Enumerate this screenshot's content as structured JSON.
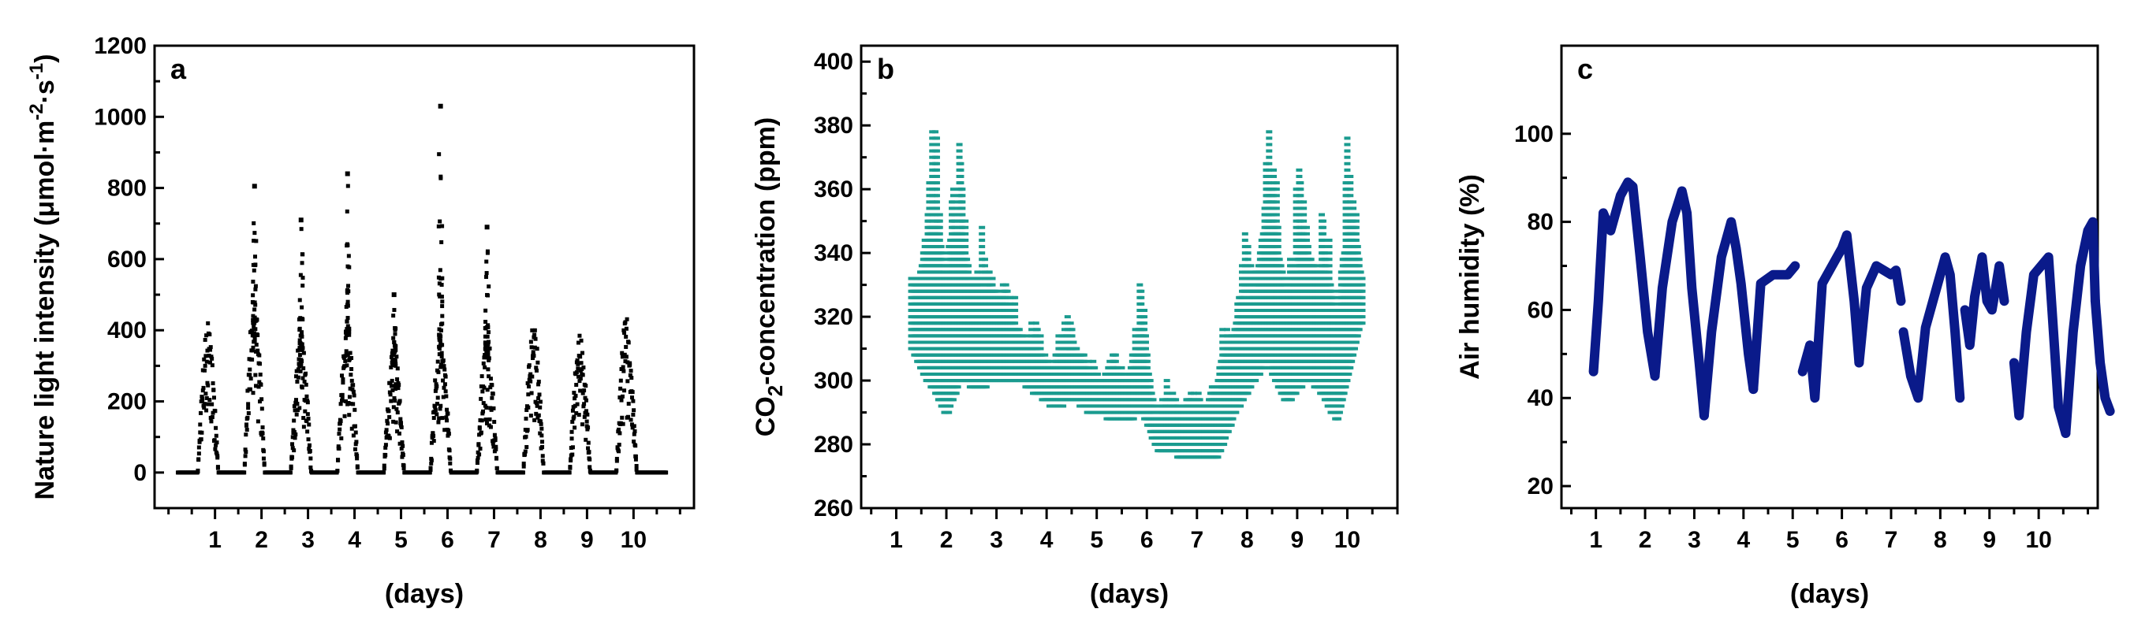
{
  "chart_data": [
    {
      "panel_label": "a",
      "type": "scatter",
      "ylabel_main": "Nature light intensity (μmol·m",
      "ylabel_sup1": "-2",
      "ylabel_mid": "·s",
      "ylabel_sup2": "-1",
      "ylabel_end": ")",
      "xlabel": "(days)",
      "xlim": [
        -0.3,
        11.3
      ],
      "ylim": [
        -100,
        1200
      ],
      "yticks": [
        0,
        200,
        400,
        600,
        800,
        1000,
        1200
      ],
      "xticks": [
        1,
        2,
        3,
        4,
        5,
        6,
        7,
        8,
        9,
        10
      ],
      "color": "#000000",
      "day_peaks": [
        {
          "day": 1,
          "center": 0.85,
          "peak": 360,
          "max_outlier": 360
        },
        {
          "day": 2,
          "center": 1.85,
          "peak": 420,
          "max_outlier": 805
        },
        {
          "day": 3,
          "center": 2.85,
          "peak": 340,
          "max_outlier": 710
        },
        {
          "day": 4,
          "center": 3.85,
          "peak": 370,
          "max_outlier": 840
        },
        {
          "day": 5,
          "center": 4.85,
          "peak": 300,
          "max_outlier": 500
        },
        {
          "day": 6,
          "center": 5.85,
          "peak": 350,
          "max_outlier": 1030
        },
        {
          "day": 7,
          "center": 6.85,
          "peak": 330,
          "max_outlier": 690
        },
        {
          "day": 8,
          "center": 7.85,
          "peak": 360,
          "max_outlier": 360
        },
        {
          "day": 9,
          "center": 8.85,
          "peak": 330,
          "max_outlier": 330
        },
        {
          "day": 10,
          "center": 9.85,
          "peak": 380,
          "max_outlier": 380
        }
      ],
      "series_x_range": [
        0.2,
        10.7
      ]
    },
    {
      "panel_label": "b",
      "type": "scatter",
      "ylabel_main": "CO",
      "ylabel_sub": "2",
      "ylabel_end": "-concentration (ppm)",
      "xlabel": "(days)",
      "xlim": [
        0.3,
        11.0
      ],
      "ylim": [
        260,
        405
      ],
      "yticks": [
        260,
        280,
        300,
        320,
        340,
        360,
        380,
        400
      ],
      "xticks": [
        1,
        2,
        3,
        4,
        5,
        6,
        7,
        8,
        9,
        10
      ],
      "color": "#1a9b8f",
      "profile": [
        {
          "x": 1.3,
          "lo": 310,
          "hi": 345
        },
        {
          "x": 1.6,
          "lo": 300,
          "hi": 370
        },
        {
          "x": 1.8,
          "lo": 295,
          "hi": 395
        },
        {
          "x": 2.0,
          "lo": 288,
          "hi": 370
        },
        {
          "x": 2.3,
          "lo": 300,
          "hi": 380
        },
        {
          "x": 2.6,
          "lo": 296,
          "hi": 350
        },
        {
          "x": 3.0,
          "lo": 300,
          "hi": 352
        },
        {
          "x": 3.4,
          "lo": 300,
          "hi": 330
        },
        {
          "x": 3.8,
          "lo": 295,
          "hi": 320
        },
        {
          "x": 4.2,
          "lo": 290,
          "hi": 316
        },
        {
          "x": 4.5,
          "lo": 294,
          "hi": 332
        },
        {
          "x": 4.8,
          "lo": 290,
          "hi": 310
        },
        {
          "x": 5.2,
          "lo": 288,
          "hi": 312
        },
        {
          "x": 5.6,
          "lo": 286,
          "hi": 312
        },
        {
          "x": 5.9,
          "lo": 290,
          "hi": 336
        },
        {
          "x": 6.2,
          "lo": 278,
          "hi": 298
        },
        {
          "x": 6.6,
          "lo": 276,
          "hi": 305
        },
        {
          "x": 7.0,
          "lo": 276,
          "hi": 302
        },
        {
          "x": 7.4,
          "lo": 274,
          "hi": 316
        },
        {
          "x": 7.8,
          "lo": 290,
          "hi": 345
        },
        {
          "x": 8.1,
          "lo": 298,
          "hi": 350
        },
        {
          "x": 8.4,
          "lo": 305,
          "hi": 390
        },
        {
          "x": 8.8,
          "lo": 292,
          "hi": 360
        },
        {
          "x": 9.2,
          "lo": 300,
          "hi": 374
        },
        {
          "x": 9.5,
          "lo": 295,
          "hi": 360
        },
        {
          "x": 9.8,
          "lo": 286,
          "hi": 350
        },
        {
          "x": 10.0,
          "lo": 300,
          "hi": 388
        },
        {
          "x": 10.3,
          "lo": 318,
          "hi": 345
        }
      ]
    },
    {
      "panel_label": "c",
      "type": "line",
      "ylabel": "Air humidity (%)",
      "xlabel": "(days)",
      "xlim": [
        0.3,
        11.2
      ],
      "ylim": [
        15,
        120
      ],
      "yticks": [
        20,
        40,
        60,
        80,
        100
      ],
      "xticks": [
        1,
        2,
        3,
        4,
        5,
        6,
        7,
        8,
        9,
        10
      ],
      "color": "#0a1a8a",
      "segments": [
        [
          [
            0.95,
            46
          ],
          [
            1.05,
            62
          ],
          [
            1.15,
            82
          ],
          [
            1.3,
            78
          ],
          [
            1.5,
            86
          ],
          [
            1.65,
            89
          ],
          [
            1.75,
            88
          ],
          [
            1.9,
            72
          ],
          [
            2.05,
            55
          ],
          [
            2.2,
            45
          ]
        ],
        [
          [
            2.2,
            45
          ],
          [
            2.35,
            65
          ],
          [
            2.55,
            80
          ],
          [
            2.75,
            87
          ],
          [
            2.85,
            82
          ],
          [
            2.95,
            65
          ],
          [
            3.1,
            48
          ],
          [
            3.2,
            36
          ]
        ],
        [
          [
            3.2,
            36
          ],
          [
            3.35,
            55
          ],
          [
            3.55,
            72
          ],
          [
            3.75,
            80
          ],
          [
            3.85,
            74
          ],
          [
            3.95,
            66
          ],
          [
            4.1,
            50
          ],
          [
            4.2,
            42
          ]
        ],
        [
          [
            4.2,
            42
          ],
          [
            4.35,
            66
          ],
          [
            4.6,
            68
          ],
          [
            4.9,
            68
          ],
          [
            5.05,
            70
          ]
        ],
        [
          [
            5.2,
            46
          ],
          [
            5.35,
            52
          ],
          [
            5.45,
            40
          ],
          [
            5.6,
            66
          ],
          [
            5.8,
            70
          ],
          [
            6.0,
            74
          ],
          [
            6.1,
            77
          ],
          [
            6.25,
            62
          ],
          [
            6.35,
            48
          ]
        ],
        [
          [
            6.35,
            48
          ],
          [
            6.5,
            65
          ],
          [
            6.7,
            70
          ],
          [
            7.0,
            68
          ],
          [
            7.1,
            69
          ],
          [
            7.2,
            62
          ]
        ],
        [
          [
            7.25,
            55
          ],
          [
            7.4,
            45
          ],
          [
            7.55,
            40
          ],
          [
            7.7,
            56
          ],
          [
            7.9,
            64
          ],
          [
            8.1,
            72
          ],
          [
            8.2,
            68
          ],
          [
            8.3,
            55
          ],
          [
            8.4,
            40
          ]
        ],
        [
          [
            8.5,
            60
          ],
          [
            8.6,
            52
          ],
          [
            8.7,
            63
          ],
          [
            8.85,
            72
          ],
          [
            8.95,
            62
          ],
          [
            9.05,
            60
          ],
          [
            9.2,
            70
          ],
          [
            9.3,
            62
          ]
        ],
        [
          [
            9.5,
            48
          ],
          [
            9.6,
            36
          ],
          [
            9.75,
            55
          ],
          [
            9.9,
            68
          ],
          [
            10.05,
            70
          ],
          [
            10.2,
            72
          ],
          [
            10.3,
            55
          ],
          [
            10.4,
            38
          ],
          [
            10.55,
            32
          ]
        ],
        [
          [
            10.55,
            32
          ],
          [
            10.7,
            55
          ],
          [
            10.85,
            70
          ],
          [
            11.0,
            78
          ],
          [
            11.1,
            80
          ],
          [
            11.15,
            62
          ]
        ],
        [
          [
            11.15,
            62
          ],
          [
            11.25,
            48
          ],
          [
            11.35,
            40
          ],
          [
            11.45,
            37
          ]
        ]
      ]
    }
  ]
}
